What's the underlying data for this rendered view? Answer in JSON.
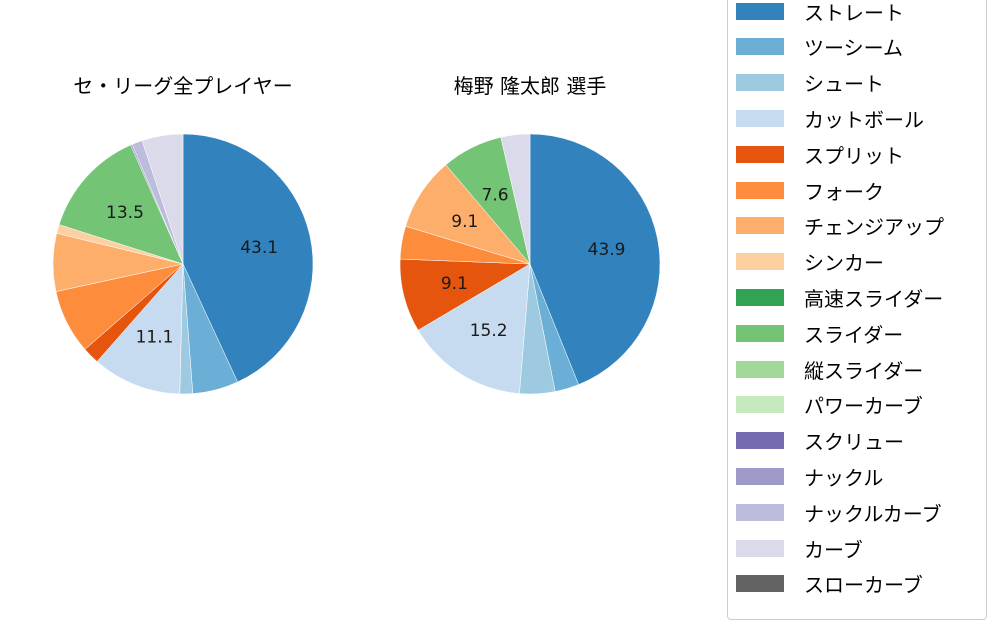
{
  "chart_data": [
    {
      "type": "pie",
      "title": "セ・リーグ全プレイヤー",
      "start_angle": 90,
      "direction": "clockwise",
      "labels": [
        "ストレート",
        "ツーシーム",
        "シュート",
        "カットボール",
        "スプリット",
        "フォーク",
        "チェンジアップ",
        "シンカー",
        "スライダー",
        "ナックル",
        "ナックルカーブ",
        "カーブ"
      ],
      "values": [
        43.1,
        5.7,
        1.6,
        11.1,
        2.1,
        8.0,
        7.2,
        1.1,
        13.5,
        0.2,
        1.3,
        5.1
      ],
      "data_labels_shown": {
        "ストレート": "43.1",
        "カットボール": "11.1",
        "スライダー": "13.5"
      }
    },
    {
      "type": "pie",
      "title": "梅野 隆太郎  選手",
      "start_angle": 90,
      "direction": "clockwise",
      "labels": [
        "ストレート",
        "ツーシーム",
        "シュート",
        "カットボール",
        "スプリット",
        "フォーク",
        "チェンジアップ",
        "スライダー",
        "カーブ"
      ],
      "values": [
        43.9,
        3.0,
        4.4,
        15.2,
        9.1,
        4.1,
        9.1,
        7.6,
        3.6
      ],
      "data_labels_shown": {
        "ストレート": "43.9",
        "カットボール": "15.2",
        "スプリット": "9.1",
        "チェンジアップ": "9.1",
        "スライダー": "7.6"
      }
    }
  ],
  "titles": {
    "left": "セ・リーグ全プレイヤー",
    "right": "梅野 隆太郎  選手"
  },
  "legend": {
    "items": [
      {
        "label": "ストレート",
        "color": "#3182bd"
      },
      {
        "label": "ツーシーム",
        "color": "#6baed6"
      },
      {
        "label": "シュート",
        "color": "#9ecae1"
      },
      {
        "label": "カットボール",
        "color": "#c6dbef"
      },
      {
        "label": "スプリット",
        "color": "#e6550d"
      },
      {
        "label": "フォーク",
        "color": "#fd8d3c"
      },
      {
        "label": "チェンジアップ",
        "color": "#fdae6b"
      },
      {
        "label": "シンカー",
        "color": "#fdd0a2"
      },
      {
        "label": "高速スライダー",
        "color": "#31a354"
      },
      {
        "label": "スライダー",
        "color": "#74c476"
      },
      {
        "label": "縦スライダー",
        "color": "#a1d99b"
      },
      {
        "label": "パワーカーブ",
        "color": "#c7e9c0"
      },
      {
        "label": "スクリュー",
        "color": "#756bb1"
      },
      {
        "label": "ナックル",
        "color": "#9e9ac8"
      },
      {
        "label": "ナックルカーブ",
        "color": "#bcbddc"
      },
      {
        "label": "カーブ",
        "color": "#dadaeb"
      },
      {
        "label": "スローカーブ",
        "color": "#636363"
      }
    ]
  }
}
